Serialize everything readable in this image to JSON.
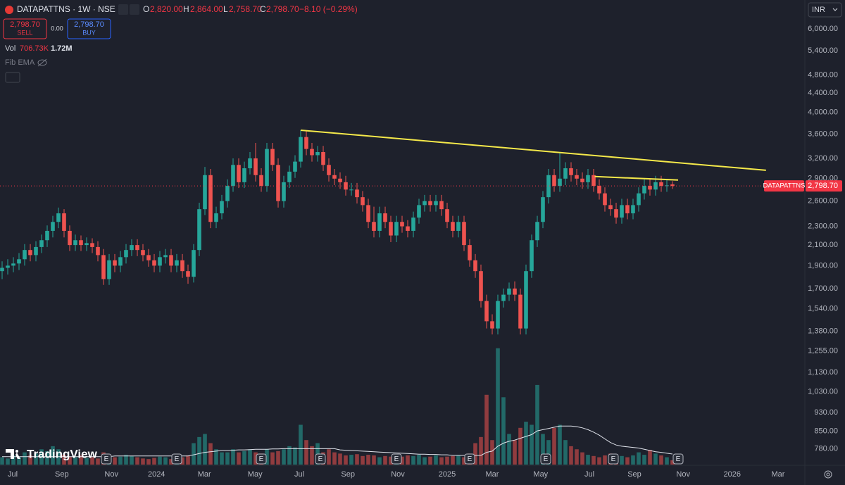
{
  "header": {
    "symbol": "DATAPATTNS · 1W · NSE",
    "o_label": "O",
    "open": "2,820.00",
    "h_label": "H",
    "high": "2,864.00",
    "l_label": "L",
    "low": "2,758.70",
    "c_label": "C",
    "close": "2,798.70",
    "change": "−8.10 (−0.29%)",
    "sell_price": "2,798.70",
    "sell": "SELL",
    "spread": "0.00",
    "buy_price": "2,798.70",
    "buy": "BUY",
    "vol_label": "Vol",
    "vol": "706.73K",
    "vol_ma": "1.72M",
    "indicator": "Fib EMA",
    "currency": "INR",
    "logo": "TradingView"
  },
  "chart_data": {
    "type": "candlestick",
    "log_scale": true,
    "grid": false,
    "up_color": "#26a69a",
    "down_color": "#ef5350",
    "ma_color": "#e0e3eb",
    "trend_color": "#f5e94a",
    "xlim": [
      -0.375,
      142.5
    ],
    "xticks": [
      {
        "value": 1.875,
        "label": "Jul"
      },
      {
        "value": 10.6,
        "label": "Sep"
      },
      {
        "value": 19.4,
        "label": "Nov"
      },
      {
        "value": 27.4,
        "label": "2024"
      },
      {
        "value": 35.9,
        "label": "Mar"
      },
      {
        "value": 44.9,
        "label": "May"
      },
      {
        "value": 52.75,
        "label": "Jul"
      },
      {
        "value": 61.4,
        "label": "Sep"
      },
      {
        "value": 70.25,
        "label": "Nov"
      },
      {
        "value": 79,
        "label": "2025"
      },
      {
        "value": 87,
        "label": "Mar"
      },
      {
        "value": 95.6,
        "label": "May"
      },
      {
        "value": 104.25,
        "label": "Jul"
      },
      {
        "value": 112.25,
        "label": "Sep"
      },
      {
        "value": 120.9,
        "label": "Nov"
      },
      {
        "value": 129.6,
        "label": "2026"
      },
      {
        "value": 137.75,
        "label": "Mar"
      }
    ],
    "ylim": [
      740,
      6300
    ],
    "yticks": [
      {
        "value": 6000,
        "label": "6,000.00"
      },
      {
        "value": 5400,
        "label": "5,400.00"
      },
      {
        "value": 4800,
        "label": "4,800.00"
      },
      {
        "value": 4400,
        "label": "4,400.00"
      },
      {
        "value": 4000,
        "label": "4,000.00"
      },
      {
        "value": 3600,
        "label": "3,600.00"
      },
      {
        "value": 3200,
        "label": "3,200.00"
      },
      {
        "value": 2900,
        "label": "2,900.00"
      },
      {
        "value": 2600,
        "label": "2,600.00"
      },
      {
        "value": 2300,
        "label": "2,300.00"
      },
      {
        "value": 2100,
        "label": "2,100.00"
      },
      {
        "value": 1900,
        "label": "1,900.00"
      },
      {
        "value": 1700,
        "label": "1,700.00"
      },
      {
        "value": 1540,
        "label": "1,540.00"
      },
      {
        "value": 1380,
        "label": "1,380.00"
      },
      {
        "value": 1255,
        "label": "1,255.00"
      },
      {
        "value": 1130,
        "label": "1,130.00"
      },
      {
        "value": 1030,
        "label": "1,030.00"
      },
      {
        "value": 930,
        "label": "930.00"
      },
      {
        "value": 850,
        "label": "850.00"
      },
      {
        "value": 780,
        "label": "780.00"
      }
    ],
    "open": [
      1850,
      1880,
      1900,
      1920,
      1960,
      2050,
      2000,
      2080,
      2150,
      2250,
      2350,
      2450,
      2250,
      2100,
      2150,
      2100,
      2120,
      2080,
      2000,
      1780,
      1950,
      1900,
      1980,
      2050,
      2100,
      2050,
      2000,
      1950,
      1900,
      1980,
      2000,
      1900,
      1950,
      1850,
      1800,
      2050,
      2500,
      2950,
      2350,
      2450,
      2600,
      2800,
      3100,
      2850,
      3050,
      3200,
      2950,
      2800,
      3350,
      3100,
      2600,
      2850,
      3000,
      3150,
      3550,
      3350,
      3250,
      3300,
      3100,
      2950,
      2900,
      2850,
      2750,
      2750,
      2650,
      2550,
      2350,
      2250,
      2450,
      2350,
      2200,
      2350,
      2300,
      2250,
      2400,
      2550,
      2600,
      2550,
      2600,
      2500,
      2350,
      2250,
      2350,
      2100,
      1950,
      1850,
      1600,
      1450,
      1400,
      1600,
      1650,
      1700,
      1650,
      1400,
      1850,
      2150,
      2350,
      2650,
      2950,
      2800,
      2900,
      3050,
      2950,
      2900,
      2850,
      2950,
      2800,
      2700,
      2550,
      2500,
      2400,
      2550,
      2450,
      2550,
      2700,
      2800,
      2750,
      2850,
      2800,
      2820
    ],
    "high": [
      1940,
      1960,
      1980,
      2020,
      2110,
      2110,
      2140,
      2210,
      2310,
      2420,
      2520,
      2500,
      2310,
      2210,
      2200,
      2180,
      2170,
      2140,
      2060,
      2010,
      2010,
      2040,
      2110,
      2160,
      2160,
      2110,
      2060,
      2010,
      2040,
      2060,
      2060,
      2010,
      2010,
      1910,
      2110,
      2580,
      3070,
      3040,
      2530,
      2680,
      2890,
      3200,
      3200,
      3150,
      3300,
      3450,
      3050,
      3450,
      3450,
      3200,
      2940,
      3090,
      3250,
      3670,
      3650,
      3450,
      3400,
      3400,
      3200,
      3040,
      2990,
      2940,
      2840,
      2840,
      2730,
      2630,
      2530,
      2530,
      2530,
      2420,
      2420,
      2420,
      2370,
      2470,
      2630,
      2680,
      2680,
      2680,
      2680,
      2580,
      2420,
      2420,
      2420,
      2160,
      2010,
      1910,
      1650,
      1500,
      1650,
      1700,
      1750,
      1760,
      1700,
      1910,
      2210,
      2420,
      2730,
      3040,
      3040,
      3280,
      3140,
      3140,
      3040,
      2990,
      3040,
      3040,
      2890,
      2780,
      2630,
      2580,
      2630,
      2630,
      2630,
      2780,
      2890,
      2890,
      2940,
      2940,
      2890,
      2864
    ],
    "low": [
      1780,
      1820,
      1840,
      1860,
      1900,
      1940,
      1940,
      2020,
      2080,
      2180,
      2280,
      2180,
      2040,
      2040,
      2040,
      2040,
      2020,
      1940,
      1730,
      1730,
      1840,
      1840,
      1920,
      1990,
      1990,
      1940,
      1890,
      1840,
      1840,
      1920,
      1840,
      1840,
      1790,
      1740,
      1750,
      1990,
      2430,
      2280,
      2280,
      2380,
      2520,
      2720,
      2770,
      2770,
      2960,
      2860,
      2720,
      2720,
      3010,
      2520,
      2520,
      2770,
      2910,
      3060,
      3250,
      3150,
      3150,
      3010,
      2860,
      2810,
      2760,
      2670,
      2670,
      2570,
      2470,
      2280,
      2180,
      2180,
      2280,
      2130,
      2130,
      2230,
      2180,
      2180,
      2330,
      2470,
      2470,
      2470,
      2420,
      2280,
      2180,
      2180,
      2040,
      1890,
      1790,
      1550,
      1400,
      1360,
      1360,
      1550,
      1600,
      1600,
      1360,
      1360,
      1790,
      2080,
      2280,
      2570,
      2720,
      2720,
      2810,
      2860,
      2810,
      2760,
      2760,
      2720,
      2620,
      2470,
      2420,
      2330,
      2330,
      2380,
      2380,
      2470,
      2620,
      2670,
      2670,
      2720,
      2720,
      2758.7
    ],
    "close": [
      1880,
      1900,
      1920,
      1960,
      2050,
      2000,
      2080,
      2150,
      2250,
      2350,
      2450,
      2250,
      2100,
      2150,
      2100,
      2120,
      2080,
      2000,
      1780,
      1950,
      1900,
      1980,
      2050,
      2100,
      2050,
      2000,
      1950,
      1900,
      1980,
      2000,
      1900,
      1950,
      1850,
      1800,
      2050,
      2500,
      2950,
      2350,
      2450,
      2600,
      2800,
      3100,
      2850,
      3050,
      3200,
      2950,
      2800,
      3350,
      3100,
      2600,
      2850,
      3000,
      3150,
      3550,
      3350,
      3250,
      3300,
      3100,
      2950,
      2900,
      2850,
      2750,
      2750,
      2650,
      2550,
      2350,
      2250,
      2450,
      2350,
      2200,
      2350,
      2300,
      2250,
      2400,
      2550,
      2600,
      2550,
      2600,
      2500,
      2350,
      2250,
      2350,
      2100,
      1950,
      1850,
      1600,
      1450,
      1400,
      1600,
      1650,
      1700,
      1650,
      1400,
      1850,
      2150,
      2350,
      2650,
      2950,
      2800,
      2900,
      3050,
      2950,
      2900,
      2850,
      2950,
      2800,
      2700,
      2550,
      2500,
      2400,
      2550,
      2450,
      2550,
      2700,
      2800,
      2750,
      2850,
      2800,
      2806.8,
      2798.7
    ],
    "volume_ylim": [
      0,
      20000000
    ],
    "volume": [
      1200000,
      1000000,
      1500000,
      1300000,
      2000000,
      1500000,
      1800000,
      2500000,
      2200000,
      3000000,
      2500000,
      1600000,
      1300000,
      1200000,
      1500000,
      1100000,
      1200000,
      1000000,
      2000000,
      1400000,
      1200000,
      1300000,
      1600000,
      1400000,
      1200000,
      1000000,
      900000,
      1100000,
      1300000,
      1200000,
      900000,
      1100000,
      1200000,
      1500000,
      3500000,
      4500000,
      5000000,
      3500000,
      2500000,
      2000000,
      2000000,
      2500000,
      2000000,
      2200000,
      2500000,
      2000000,
      1800000,
      2500000,
      2000000,
      2200000,
      2500000,
      3000000,
      2800000,
      6500000,
      4000000,
      3000000,
      3500000,
      2000000,
      2500000,
      2000000,
      1800000,
      1500000,
      1600000,
      1700000,
      1400000,
      1600000,
      1500000,
      1200000,
      1400000,
      1300000,
      1200000,
      1300000,
      1500000,
      1400000,
      1600000,
      1200000,
      1300000,
      1500000,
      1200000,
      1300000,
      1400000,
      1500000,
      1200000,
      1800000,
      3500000,
      4500000,
      11400000,
      4000000,
      19000000,
      11000000,
      5000000,
      4000000,
      6000000,
      7000000,
      6500000,
      13000000,
      5000000,
      4000000,
      6000000,
      6500000,
      4000000,
      3000000,
      2500000,
      2000000,
      1600000,
      1400000,
      1200000,
      1500000,
      1800000,
      1300000,
      1400000,
      1200000,
      1500000,
      2000000,
      1600000,
      2400000,
      1800000,
      1500000,
      1200000,
      706730
    ],
    "volume_ma": [
      1300000,
      1300000,
      1300000,
      1300000,
      1300000,
      1300000,
      1300000,
      1300000,
      1300000,
      1300000,
      1300000,
      1300000,
      1300000,
      1300000,
      1300000,
      1300000,
      1300000,
      1300000,
      1300000,
      1300000,
      1400000,
      1400000,
      1400000,
      1400000,
      1400000,
      1400000,
      1400000,
      1400000,
      1400000,
      1400000,
      1400000,
      1400000,
      1400000,
      1400000,
      1600000,
      1800000,
      2000000,
      2100000,
      2200000,
      2300000,
      2300000,
      2350000,
      2400000,
      2400000,
      2450000,
      2500000,
      2500000,
      2500000,
      2550000,
      2550000,
      2600000,
      2600000,
      2600000,
      2600000,
      2600000,
      2600000,
      2600000,
      2600000,
      2600000,
      2600000,
      2400000,
      2350000,
      2300000,
      2250000,
      2200000,
      2150000,
      2100000,
      2050000,
      2000000,
      1950000,
      1900000,
      1850000,
      1800000,
      1750000,
      1700000,
      1700000,
      1650000,
      1650000,
      1600000,
      1600000,
      1500000,
      1500000,
      1500000,
      1500000,
      1500000,
      1500000,
      2000000,
      2200000,
      3000000,
      3500000,
      3800000,
      4000000,
      4300000,
      4600000,
      4900000,
      5500000,
      5700000,
      5900000,
      6100000,
      6300000,
      6300000,
      6300000,
      6200000,
      6000000,
      5700000,
      5300000,
      4800000,
      4200000,
      3600000,
      3200000,
      3000000,
      2900000,
      2800000,
      2700000,
      2500000,
      2300000,
      2100000,
      2000000,
      1850000,
      1720000
    ],
    "trendlines": [
      {
        "x": [
          53,
          135.6
        ],
        "y": [
          3670,
          3020
        ]
      },
      {
        "x": [
          105.2,
          120
        ],
        "y": [
          2930,
          2880
        ]
      }
    ],
    "price_line": {
      "value": 2798.7,
      "label": "2,798.70",
      "name": "DATAPATTNS"
    },
    "events": [
      {
        "x": 18.5,
        "label": "E"
      },
      {
        "x": 31,
        "label": "E"
      },
      {
        "x": 46,
        "label": "E"
      },
      {
        "x": 56.5,
        "label": "E"
      },
      {
        "x": 70,
        "label": "E"
      },
      {
        "x": 83,
        "label": "E"
      },
      {
        "x": 96.5,
        "label": "E"
      },
      {
        "x": 108.5,
        "label": "E"
      },
      {
        "x": 120,
        "label": "E"
      }
    ]
  }
}
